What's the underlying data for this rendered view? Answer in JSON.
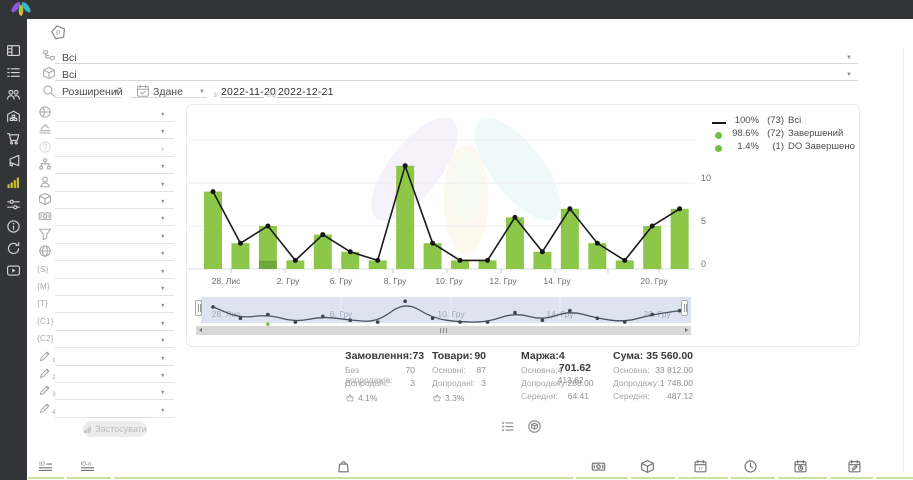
{
  "sidebar": {
    "active_color": "#cfc32e",
    "items": [
      {
        "icon": "dashboard-icon"
      },
      {
        "icon": "orders-list-icon"
      },
      {
        "icon": "customers-icon"
      },
      {
        "icon": "warehouse-icon"
      },
      {
        "icon": "cart-icon"
      },
      {
        "icon": "marketing-icon"
      },
      {
        "icon": "statistics-icon",
        "active": true
      },
      {
        "icon": "settings-sliders-icon"
      },
      {
        "icon": "info-icon"
      },
      {
        "icon": "refresh-icon"
      },
      {
        "icon": "video-icon"
      }
    ]
  },
  "header": {
    "project_badge_icon": "pentagon-p-icon"
  },
  "filters": {
    "rows_top": [
      {
        "icon": "tree-icon",
        "value": "Всі"
      },
      {
        "icon": "product-icon",
        "value": "Всі"
      }
    ],
    "search_row": {
      "icon": "search-icon",
      "mode": "Розширений",
      "date_type_icon": "calendar-check-icon",
      "date_type": "Здане",
      "from_label": "з",
      "date_from": "2022-11-20",
      "to_label": "по",
      "date_to": "2022-12-21"
    },
    "selects": [
      {
        "icon": "country-icon",
        "value": ""
      },
      {
        "icon": "layers-icon",
        "value": ""
      },
      {
        "icon": "help-icon",
        "value": "",
        "disabled": true
      },
      {
        "icon": "hierarchy-icon",
        "value": ""
      },
      {
        "icon": "person-icon",
        "value": ""
      },
      {
        "icon": "product-icon",
        "value": ""
      },
      {
        "icon": "money-icon",
        "value": ""
      },
      {
        "icon": "funnel-icon",
        "value": ""
      },
      {
        "icon": "website-icon",
        "value": ""
      },
      {
        "icon": "tag-s-icon",
        "glyph": "{S}",
        "value": ""
      },
      {
        "icon": "tag-m-icon",
        "glyph": "{M}",
        "value": ""
      },
      {
        "icon": "tag-t-icon",
        "glyph": "{T}",
        "value": ""
      },
      {
        "icon": "tag-c1-icon",
        "glyph": "{C1}",
        "value": ""
      },
      {
        "icon": "tag-c2-icon",
        "glyph": "{C2}",
        "value": ""
      },
      {
        "icon": "pencil-icon",
        "sub": "1",
        "value": ""
      },
      {
        "icon": "pencil-icon",
        "sub": "2",
        "value": ""
      },
      {
        "icon": "pencil-icon",
        "sub": "3",
        "value": ""
      },
      {
        "icon": "pencil-icon",
        "sub": "4",
        "value": ""
      }
    ],
    "apply_label": "Застосувати"
  },
  "chart_data": {
    "type": "bar+line",
    "x_tick_labels": [
      "28. Лис",
      "2. Гру",
      "6. Гру",
      "8. Гру",
      "10. Гру",
      "12. Гру",
      "14. Гру",
      "20. Гру"
    ],
    "yticks": [
      0,
      5,
      10
    ],
    "ylim": [
      0,
      15
    ],
    "grid": true,
    "series": [
      {
        "name": "Всі",
        "type": "line",
        "color": "#1a1a1a",
        "values": [
          9,
          3,
          5,
          1,
          4,
          2,
          1,
          12,
          3,
          1,
          1,
          6,
          2,
          7,
          3,
          1,
          5,
          7
        ]
      },
      {
        "name": "Завершений",
        "type": "bar",
        "color": "#8dc74a",
        "values": [
          9,
          3,
          4,
          1,
          4,
          2,
          1,
          12,
          3,
          1,
          1,
          6,
          2,
          7,
          3,
          1,
          5,
          7
        ]
      },
      {
        "name": "DO Завершено",
        "type": "bar",
        "color": "#6fa93e",
        "values": [
          0,
          0,
          1,
          0,
          0,
          0,
          0,
          0,
          0,
          0,
          0,
          0,
          0,
          0,
          0,
          0,
          0,
          0
        ]
      }
    ],
    "legend": [
      {
        "marker": "line",
        "color": "#1a1a1a",
        "pct": "100%",
        "count": "(73)",
        "label": "Всі"
      },
      {
        "marker": "dot",
        "color": "#74c043",
        "pct": "98.6%",
        "count": "(72)",
        "label": "Завершений"
      },
      {
        "marker": "dot",
        "color": "#74c043",
        "pct": "1.4%",
        "count": "(1)",
        "label": "DO Завершено"
      }
    ],
    "navigator": {
      "labels": [
        "28. Лис",
        "6. Гру",
        "10. Гру",
        "14. Гру",
        "20. Гру"
      ],
      "background": "#dde4ef",
      "do_point": {
        "index": 2,
        "value": 1,
        "color": "#74c043"
      }
    }
  },
  "stats": {
    "columns": [
      {
        "title": "Замовлення:",
        "value": "73",
        "rows": [
          [
            "Без допродажів:",
            "70"
          ],
          [
            "Допродані:",
            "3"
          ]
        ],
        "upsell": "4.1%"
      },
      {
        "title": "Товари:",
        "value": "90",
        "rows": [
          [
            "Основні:",
            "87"
          ],
          [
            "Допродані:",
            "3"
          ]
        ],
        "upsell": "3.3%"
      },
      {
        "title": "Маржа:",
        "value": "4 701.62",
        "rows": [
          [
            "Основна:",
            "4 413.62"
          ],
          [
            "Допродажу:",
            "288.00"
          ],
          [
            "Середня:",
            "64.41"
          ]
        ]
      },
      {
        "title": "Сума:",
        "value": "35 560.00",
        "rows": [
          [
            "Основна:",
            "33 812.00"
          ],
          [
            "Допродажу:",
            "1 748.00"
          ],
          [
            "Середня:",
            "487.12"
          ]
        ]
      }
    ]
  },
  "view_toggles": [
    {
      "icon": "list-view-icon"
    },
    {
      "icon": "package-circle-icon"
    }
  ],
  "bottom_bar": {
    "underline_color": "#c8e1a2",
    "columns": [
      {
        "icon": "id-list-icon"
      },
      {
        "icon": "id-o-icon"
      },
      {
        "icon": "bag-icon"
      },
      {
        "icon": "banknote-icon"
      },
      {
        "icon": "package-icon"
      },
      {
        "icon": "calendar-icon"
      },
      {
        "icon": "clock-icon"
      },
      {
        "icon": "calendar-clock-icon"
      },
      {
        "icon": "calendar-edit-icon"
      }
    ]
  }
}
